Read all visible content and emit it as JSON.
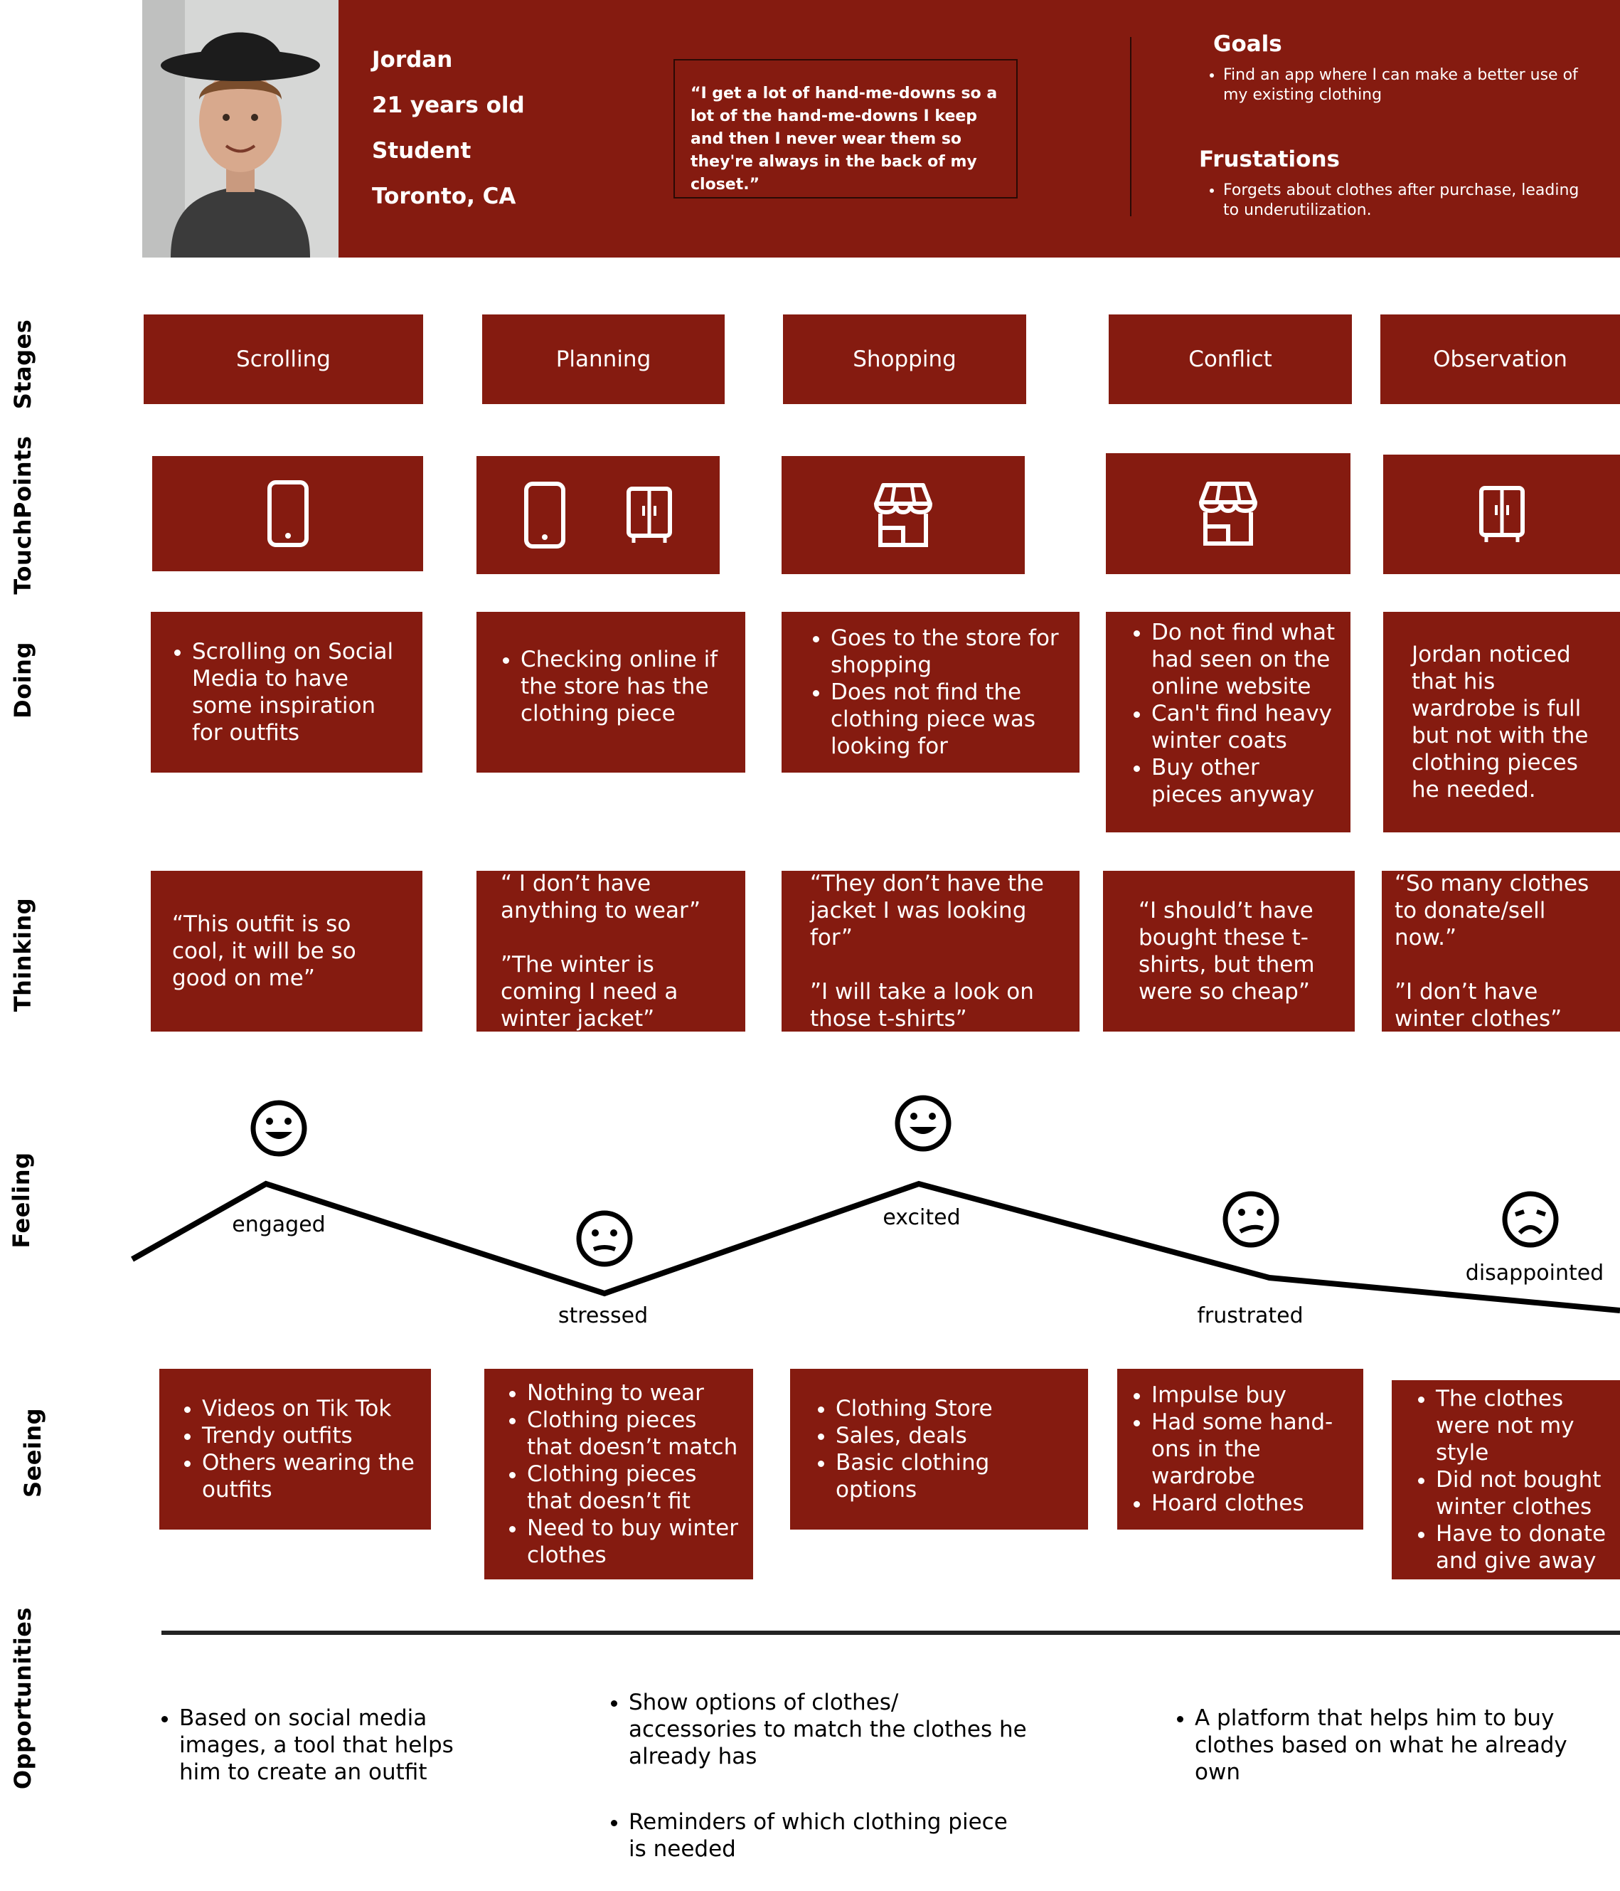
{
  "persona": {
    "name": "Jordan",
    "age": "21 years old",
    "occupation": "Student",
    "location": "Toronto, CA",
    "quote": "“I get a lot of hand-me-downs so a lot of the hand-me-downs I keep and then I never wear them so they're always in the back of my closet.”",
    "goals_title": "Goals",
    "goals": [
      "Find an app where I can make a better use of my existing clothing"
    ],
    "frustrations_title": "Frustations",
    "frustrations": [
      "Forgets about clothes after purchase, leading to underutilization."
    ]
  },
  "row_labels": {
    "stages": "Stages",
    "touchpoints": "TouchPoints",
    "doing": "Doing",
    "thinking": "Thinking",
    "feeling": "Feeling",
    "seeing": "Seeing",
    "opportunities": "Opportunities"
  },
  "stages": [
    "Scrolling",
    "Planning",
    "Shopping",
    "Conflict",
    "Observation"
  ],
  "touchpoints": [
    [
      "phone-icon"
    ],
    [
      "phone-icon",
      "wardrobe-icon"
    ],
    [
      "store-icon"
    ],
    [
      "store-icon"
    ],
    [
      "wardrobe-icon"
    ]
  ],
  "doing": [
    [
      "Scrolling on Social Media to have some inspiration for outfits"
    ],
    [
      "Checking online if the store has the clothing piece"
    ],
    [
      "Goes to the store for shopping",
      "Does not find the clothing piece was looking for"
    ],
    [
      "Do not find what had seen on the online website",
      "Can't find heavy winter coats",
      "Buy other pieces anyway"
    ],
    "Jordan noticed that his wardrobe is full but not with the clothing pieces he needed."
  ],
  "thinking": [
    "“This outfit is so cool, it will be so good on me”",
    "“ I don’t have anything to wear”\n\n”The winter is coming I need a winter jacket”",
    "“They don’t have the jacket I was looking for”\n\n”I will take a look on those t-shirts”",
    "“I should’t have bought these t-shirts, but them were so cheap”",
    "“So many clothes to donate/sell now.”\n\n”I don’t have winter clothes”"
  ],
  "feeling": {
    "labels": [
      "engaged",
      "stressed",
      "excited",
      "frustrated",
      "disappointed"
    ],
    "faces": [
      "happy",
      "neutral",
      "happy",
      "sad",
      "sad"
    ]
  },
  "seeing": [
    [
      "Videos on Tik Tok",
      " Trendy outfits",
      "Others wearing the outfits"
    ],
    [
      "Nothing to wear",
      "Clothing pieces that doesn’t match",
      "Clothing pieces that doesn’t fit",
      "Need to buy winter clothes"
    ],
    [
      "Clothing Store",
      "Sales, deals",
      "Basic clothing options"
    ],
    [
      "Impulse buy",
      "Had some hand-ons in the wardrobe",
      "Hoard clothes"
    ],
    [
      "The clothes were not my style",
      "Did not bought winter clothes",
      "Have to donate and give away"
    ]
  ],
  "opportunities": [
    [
      "Based on social media images, a tool that helps him to create an outfit"
    ],
    [
      "Show options of clothes/ accessories to match the clothes he already has",
      "Reminders of which clothing piece is needed"
    ],
    [
      "A platform that helps him to buy clothes based on what he already own"
    ]
  ],
  "colors": {
    "accent": "#851b10",
    "text_on_accent": "#ffffff"
  }
}
